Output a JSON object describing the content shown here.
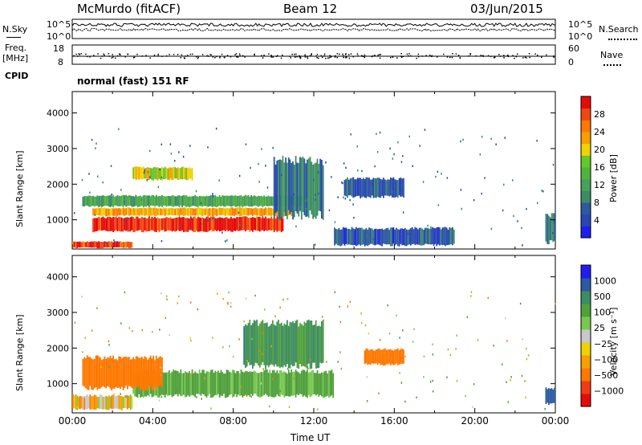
{
  "header": {
    "station": "McMurdo (fitACF)",
    "beam": "Beam 12",
    "date": "03/Jun/2015"
  },
  "noise_panel": {
    "left_label": "N.Sky",
    "right_label": "N.Search",
    "ticks_left": [
      "10^5",
      "10^0"
    ],
    "ticks_right": [
      "10^5",
      "10^0"
    ]
  },
  "freq_panel": {
    "left_label_line1": "Freq.",
    "left_label_line2": "[MHz]",
    "ticks_left": [
      "18",
      "8"
    ],
    "ticks_right": [
      "60",
      "0"
    ],
    "right_label": "Nave"
  },
  "cpid_panel": {
    "label": "CPID",
    "mode": "normal (fast) 151 RF"
  },
  "colors": {
    "power_scale": [
      "#1e1ef0",
      "#2846b4",
      "#2c5aa0",
      "#3c8c64",
      "#48a05a",
      "#50b43c",
      "#64c828",
      "#f0d200",
      "#f5a000",
      "#ff7800",
      "#f04614",
      "#e60a0a"
    ],
    "velocity_scale": [
      "#e60a0a",
      "#f03c14",
      "#ff7800",
      "#f5a000",
      "#f0d200",
      "#c8c8c8",
      "#78c850",
      "#50a03c",
      "#3c8c64",
      "#2c5aa0",
      "#1e1ef0"
    ]
  },
  "chart_data": [
    {
      "type": "heatmap",
      "name": "power",
      "xlabel": "",
      "ylabel": "Slant Range [km]",
      "xlim": [
        0,
        24
      ],
      "ylim": [
        180,
        4600
      ],
      "y_ticks": [
        "1000",
        "2000",
        "3000",
        "4000"
      ],
      "colorbar_label": "Power [dB]",
      "colorbar_ticks": [
        "4",
        "8",
        "12",
        "16",
        "20",
        "24",
        "28"
      ],
      "regions": [
        {
          "t0": 1.0,
          "t1": 10.5,
          "r0": 650,
          "r1": 1100,
          "value": 27
        },
        {
          "t0": 1.0,
          "t1": 11.0,
          "r0": 1100,
          "r1": 1350,
          "value": 21
        },
        {
          "t0": 0.5,
          "t1": 11.5,
          "r0": 1350,
          "r1": 1700,
          "value": 12
        },
        {
          "t0": 10.0,
          "t1": 12.5,
          "r0": 1000,
          "r1": 2800,
          "value": 8
        },
        {
          "t0": 13.5,
          "t1": 16.5,
          "r0": 1600,
          "r1": 2200,
          "value": 6
        },
        {
          "t0": 3.0,
          "t1": 6.0,
          "r0": 2100,
          "r1": 2500,
          "value": 18
        },
        {
          "t0": 0.0,
          "t1": 3.0,
          "r0": 200,
          "r1": 400,
          "value": 26
        },
        {
          "t0": 13.0,
          "t1": 19.0,
          "r0": 250,
          "r1": 800,
          "value": 6
        },
        {
          "t0": 23.5,
          "t1": 24.0,
          "r0": 300,
          "r1": 1200,
          "value": 10
        }
      ]
    },
    {
      "type": "heatmap",
      "name": "velocity",
      "xlabel": "Time UT",
      "ylabel": "Slant Range [km]",
      "xlim": [
        0,
        24
      ],
      "ylim": [
        180,
        4600
      ],
      "x_ticks": [
        "00:00",
        "04:00",
        "08:00",
        "12:00",
        "16:00",
        "20:00",
        "00:00"
      ],
      "y_ticks": [
        "1000",
        "2000",
        "3000",
        "4000"
      ],
      "colorbar_label": "Velocity [m s⁻¹]",
      "colorbar_ticks": [
        "1000",
        "500",
        "100",
        "25",
        "−25",
        "−100",
        "−500",
        "−1000"
      ],
      "regions": [
        {
          "t0": 3.0,
          "t1": 13.0,
          "r0": 600,
          "r1": 1400,
          "value": 150
        },
        {
          "t0": 0.5,
          "t1": 4.5,
          "r0": 800,
          "r1": 1800,
          "value": -200
        },
        {
          "t0": 8.5,
          "t1": 12.5,
          "r0": 1400,
          "r1": 2800,
          "value": 300
        },
        {
          "t0": 14.5,
          "t1": 16.5,
          "r0": 1500,
          "r1": 2000,
          "value": -300
        },
        {
          "t0": 0.0,
          "t1": 3.0,
          "r0": 250,
          "r1": 700,
          "value": -50
        },
        {
          "t0": 23.5,
          "t1": 24.0,
          "r0": 400,
          "r1": 900,
          "value": 800
        }
      ]
    }
  ]
}
